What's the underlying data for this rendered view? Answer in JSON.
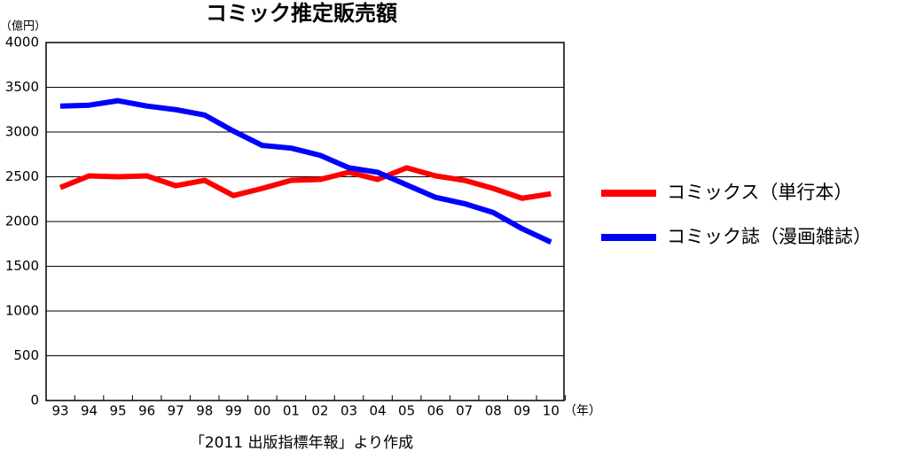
{
  "chart_data": {
    "type": "line",
    "title": "コミック推定販売額",
    "y_unit": "（億円）",
    "x_unit": "（年）",
    "source": "「2011 出版指標年報」より作成",
    "categories": [
      "93",
      "94",
      "95",
      "96",
      "97",
      "98",
      "99",
      "00",
      "01",
      "02",
      "03",
      "04",
      "05",
      "06",
      "07",
      "08",
      "09",
      "10"
    ],
    "series": [
      {
        "name": "コミックス（単行本）",
        "color": "#ff0000",
        "values": [
          2380,
          2510,
          2500,
          2510,
          2400,
          2460,
          2290,
          2370,
          2460,
          2470,
          2550,
          2470,
          2600,
          2510,
          2460,
          2370,
          2260,
          2310
        ]
      },
      {
        "name": "コミック誌（漫画雑誌）",
        "color": "#0000ff",
        "values": [
          3290,
          3300,
          3350,
          3290,
          3250,
          3190,
          3010,
          2850,
          2820,
          2740,
          2600,
          2550,
          2410,
          2270,
          2200,
          2100,
          1920,
          1770
        ]
      }
    ],
    "ylim": [
      0,
      4000
    ],
    "yticks": [
      0,
      500,
      1000,
      1500,
      2000,
      2500,
      3000,
      3500,
      4000
    ],
    "grid": true
  }
}
